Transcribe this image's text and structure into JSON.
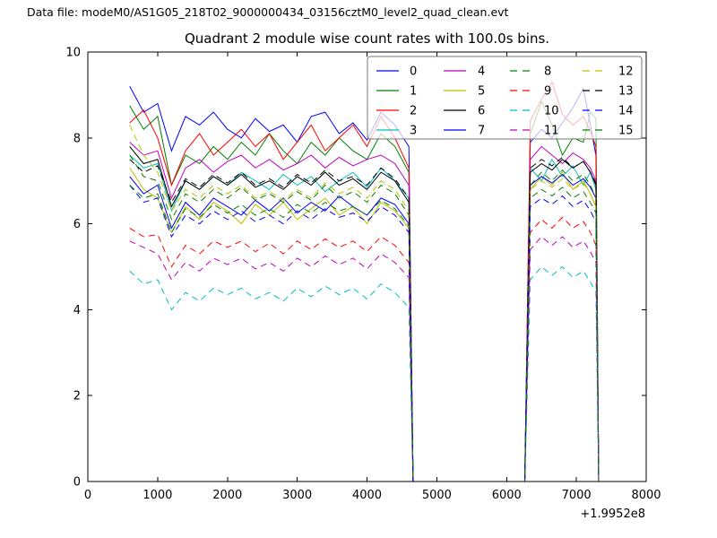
{
  "figure": {
    "header": "Data file: modeM0/AS1G05_218T02_9000000434_03156cztM0_level2_quad_clean.evt"
  },
  "chart_data": {
    "type": "line",
    "title": "Quadrant 2 module wise count rates with 100.0s bins.",
    "xlabel": "",
    "ylabel": "",
    "xlim": [
      0,
      8000
    ],
    "ylim": [
      0,
      10
    ],
    "xticks": [
      0,
      1000,
      2000,
      3000,
      4000,
      5000,
      6000,
      7000,
      8000
    ],
    "yticks": [
      0,
      2,
      4,
      6,
      8,
      10
    ],
    "x_offset_text": "+1.9952e8",
    "grid": false,
    "legend": {
      "position": "upper right",
      "columns": 4,
      "frame_fill": "rgba(255,255,255,0.72)",
      "frame_stroke": "#777777"
    },
    "x": [
      600,
      800,
      1000,
      1200,
      1400,
      1600,
      1800,
      2000,
      2200,
      2400,
      2600,
      2800,
      3000,
      3200,
      3400,
      3600,
      3800,
      4000,
      4200,
      4400,
      4600,
      4660,
      6260,
      6340,
      6500,
      6650,
      6800,
      6950,
      7100,
      7200,
      7280,
      7320
    ],
    "series": [
      {
        "name": "0",
        "color": "#0000ff",
        "style": "solid",
        "y": [
          9.2,
          8.6,
          8.8,
          7.7,
          8.5,
          8.3,
          8.6,
          8.2,
          8.0,
          8.45,
          8.15,
          8.3,
          7.9,
          8.5,
          8.6,
          8.1,
          8.35,
          7.95,
          8.6,
          8.3,
          7.8,
          0,
          0,
          7.9,
          8.2,
          8.0,
          8.35,
          8.7,
          9.15,
          8.3,
          7.6,
          0
        ]
      },
      {
        "name": "1",
        "color": "#008000",
        "style": "solid",
        "y": [
          8.75,
          8.2,
          8.5,
          6.9,
          7.6,
          7.4,
          7.8,
          7.5,
          7.9,
          7.6,
          8.1,
          7.7,
          7.4,
          7.9,
          7.6,
          8.0,
          7.7,
          7.5,
          8.1,
          7.8,
          7.2,
          0,
          0,
          8.1,
          8.85,
          8.3,
          7.6,
          8.0,
          7.9,
          8.6,
          8.45,
          0
        ]
      },
      {
        "name": "2",
        "color": "#ff0000",
        "style": "solid",
        "y": [
          8.35,
          8.65,
          8.0,
          6.9,
          7.7,
          8.1,
          7.6,
          7.9,
          8.2,
          7.8,
          8.1,
          7.5,
          7.9,
          8.3,
          7.7,
          8.0,
          8.3,
          7.8,
          8.5,
          8.0,
          7.3,
          0,
          0,
          8.4,
          8.9,
          9.3,
          8.55,
          8.3,
          8.5,
          8.15,
          7.8,
          0
        ]
      },
      {
        "name": "3",
        "color": "#00bfbf",
        "style": "solid",
        "y": [
          7.6,
          7.3,
          7.4,
          6.3,
          7.0,
          6.8,
          7.1,
          6.9,
          7.2,
          7.0,
          6.8,
          7.15,
          6.9,
          7.1,
          6.75,
          7.0,
          7.2,
          6.85,
          7.3,
          7.0,
          6.6,
          0,
          0,
          7.3,
          7.0,
          7.5,
          7.1,
          7.35,
          6.9,
          7.2,
          6.8,
          0
        ]
      },
      {
        "name": "4",
        "color": "#bf00bf",
        "style": "solid",
        "y": [
          7.9,
          7.6,
          7.7,
          6.6,
          7.3,
          7.5,
          7.2,
          7.45,
          7.6,
          7.3,
          7.5,
          7.25,
          7.4,
          7.6,
          7.3,
          7.55,
          7.35,
          7.5,
          7.6,
          7.4,
          6.9,
          0,
          0,
          7.5,
          7.8,
          7.6,
          7.4,
          7.65,
          7.5,
          7.3,
          7.0,
          0
        ]
      },
      {
        "name": "5",
        "color": "#bfbf00",
        "style": "solid",
        "y": [
          7.3,
          6.8,
          6.6,
          5.8,
          6.4,
          6.1,
          6.5,
          6.3,
          6.0,
          6.45,
          6.2,
          6.5,
          6.1,
          6.35,
          6.6,
          6.2,
          6.4,
          6.0,
          6.5,
          6.3,
          5.9,
          0,
          0,
          6.8,
          7.1,
          6.9,
          7.2,
          6.8,
          7.0,
          6.7,
          6.4,
          0
        ]
      },
      {
        "name": "6",
        "color": "#000000",
        "style": "solid",
        "y": [
          7.8,
          7.4,
          7.5,
          6.4,
          7.0,
          6.8,
          7.1,
          6.9,
          7.15,
          6.85,
          7.0,
          6.8,
          7.1,
          6.9,
          7.2,
          6.9,
          7.05,
          6.8,
          7.2,
          7.0,
          6.5,
          0,
          0,
          7.2,
          7.4,
          7.25,
          7.5,
          7.3,
          7.45,
          7.2,
          6.9,
          0
        ]
      },
      {
        "name": "7",
        "color": "#0000ff",
        "style": "solid",
        "y": [
          7.1,
          6.7,
          6.9,
          5.9,
          6.5,
          6.2,
          6.6,
          6.4,
          6.2,
          6.55,
          6.3,
          6.6,
          6.25,
          6.5,
          6.3,
          6.65,
          6.4,
          6.2,
          6.6,
          6.45,
          6.0,
          0,
          0,
          6.9,
          7.1,
          6.95,
          7.15,
          6.9,
          7.05,
          6.85,
          6.6,
          0
        ]
      },
      {
        "name": "8",
        "color": "#008000",
        "style": "dashed",
        "y": [
          7.6,
          7.1,
          7.0,
          6.1,
          6.7,
          6.5,
          6.8,
          6.6,
          6.85,
          6.55,
          6.7,
          6.5,
          6.75,
          6.55,
          6.9,
          6.6,
          6.75,
          6.5,
          6.9,
          6.7,
          6.2,
          0,
          0,
          6.9,
          7.2,
          7.0,
          7.25,
          7.0,
          7.15,
          6.9,
          6.6,
          0
        ]
      },
      {
        "name": "9",
        "color": "#ff0000",
        "style": "dashed",
        "y": [
          5.9,
          5.7,
          5.75,
          5.0,
          5.5,
          5.3,
          5.6,
          5.45,
          5.6,
          5.35,
          5.55,
          5.3,
          5.6,
          5.4,
          5.65,
          5.45,
          5.6,
          5.35,
          5.7,
          5.5,
          5.1,
          0,
          0,
          5.8,
          6.1,
          5.9,
          6.15,
          5.9,
          6.05,
          5.8,
          5.5,
          0
        ]
      },
      {
        "name": "10",
        "color": "#00bfbf",
        "style": "dashed",
        "y": [
          4.9,
          4.6,
          4.7,
          4.0,
          4.4,
          4.2,
          4.5,
          4.35,
          4.5,
          4.25,
          4.4,
          4.2,
          4.5,
          4.3,
          4.55,
          4.35,
          4.5,
          4.25,
          4.6,
          4.4,
          4.05,
          0,
          0,
          4.7,
          5.0,
          4.8,
          5.0,
          4.75,
          4.9,
          4.65,
          4.4,
          0
        ]
      },
      {
        "name": "11",
        "color": "#bf00bf",
        "style": "dashed",
        "y": [
          5.6,
          5.45,
          5.3,
          4.7,
          5.1,
          4.9,
          5.2,
          5.05,
          5.2,
          4.95,
          5.1,
          4.9,
          5.2,
          5.0,
          5.25,
          5.05,
          5.2,
          4.95,
          5.3,
          5.1,
          4.75,
          0,
          0,
          5.4,
          5.7,
          5.5,
          5.7,
          5.45,
          5.6,
          5.35,
          5.1,
          0
        ]
      },
      {
        "name": "12",
        "color": "#bfbf00",
        "style": "dashed",
        "y": [
          8.3,
          7.6,
          7.2,
          6.3,
          6.8,
          6.6,
          6.9,
          6.7,
          6.9,
          6.6,
          6.75,
          6.55,
          6.8,
          6.6,
          6.95,
          6.7,
          6.85,
          6.6,
          7.0,
          6.8,
          6.3,
          0,
          0,
          6.8,
          7.0,
          6.85,
          7.05,
          6.8,
          6.95,
          6.7,
          6.4,
          0
        ]
      },
      {
        "name": "13",
        "color": "#000000",
        "style": "dashed",
        "y": [
          7.5,
          7.2,
          7.35,
          6.5,
          7.05,
          6.85,
          7.15,
          6.95,
          7.2,
          6.9,
          7.05,
          6.85,
          7.15,
          6.95,
          7.25,
          7.0,
          7.1,
          6.9,
          7.3,
          7.05,
          6.6,
          0,
          0,
          7.3,
          7.5,
          7.35,
          7.55,
          7.3,
          7.45,
          7.2,
          6.95,
          0
        ]
      },
      {
        "name": "14",
        "color": "#0000ff",
        "style": "dashed",
        "y": [
          6.9,
          6.5,
          6.6,
          5.7,
          6.2,
          6.0,
          6.3,
          6.1,
          6.3,
          6.05,
          6.2,
          6.0,
          6.3,
          6.1,
          6.35,
          6.15,
          6.25,
          6.05,
          6.4,
          6.2,
          5.8,
          0,
          0,
          6.4,
          6.6,
          6.45,
          6.65,
          6.4,
          6.55,
          6.3,
          6.05,
          0
        ]
      },
      {
        "name": "15",
        "color": "#008000",
        "style": "dashed",
        "y": [
          6.9,
          6.6,
          6.7,
          5.8,
          6.35,
          6.15,
          6.45,
          6.25,
          6.45,
          6.2,
          6.35,
          6.15,
          6.45,
          6.25,
          6.5,
          6.3,
          6.4,
          6.2,
          6.55,
          6.35,
          5.95,
          0,
          0,
          6.6,
          6.8,
          6.65,
          6.85,
          6.6,
          6.75,
          6.5,
          6.25,
          0
        ]
      }
    ]
  }
}
